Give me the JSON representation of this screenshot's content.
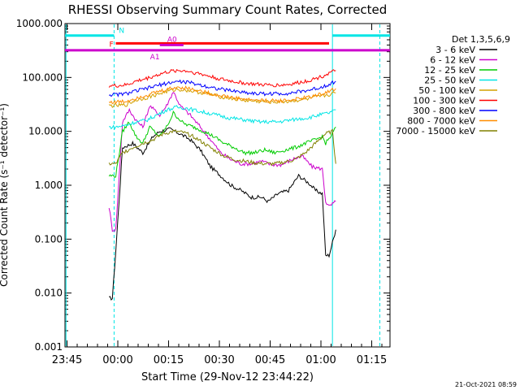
{
  "chart_data": {
    "type": "line",
    "title": "RHESSI Observing Summary Count Rates, Corrected",
    "xlabel": "Start Time (29-Nov-12 23:44:22)",
    "ylabel": "Corrected Count Rate (s⁻¹ detector⁻¹)",
    "x_unit": "minutes after 23:44:22",
    "xlim": [
      0,
      96
    ],
    "ylim": [
      0.001,
      1000
    ],
    "yscale": "log",
    "x_ticks": [
      {
        "t": 0.6,
        "label": "23:45"
      },
      {
        "t": 15.6,
        "label": "00:00"
      },
      {
        "t": 30.6,
        "label": "00:15"
      },
      {
        "t": 45.6,
        "label": "00:30"
      },
      {
        "t": 60.6,
        "label": "00:45"
      },
      {
        "t": 75.6,
        "label": "01:00"
      },
      {
        "t": 90.6,
        "label": "01:15"
      }
    ],
    "y_ticks": [
      {
        "v": 0.001,
        "label": "0.001"
      },
      {
        "v": 0.01,
        "label": "0.010"
      },
      {
        "v": 0.1,
        "label": "0.100"
      },
      {
        "v": 1,
        "label": "1.000"
      },
      {
        "v": 10,
        "label": "10.000"
      },
      {
        "v": 100,
        "label": "100.000"
      },
      {
        "v": 1000,
        "label": "1000.000"
      }
    ],
    "legend_title": "Det 1,3,5,6,9",
    "legend_position": "right",
    "series": [
      {
        "name": "3 - 6 keV",
        "color": "#000000",
        "x": [
          13,
          14,
          15,
          17,
          20,
          23,
          26,
          28,
          31,
          34,
          37,
          40,
          43,
          46,
          49,
          52,
          55,
          58,
          60,
          63,
          66,
          69,
          72,
          74,
          76,
          77,
          78,
          80
        ],
        "values": [
          0.008,
          0.008,
          0.06,
          5,
          6,
          4,
          8,
          10,
          11,
          9,
          7,
          4.5,
          2.2,
          1.5,
          1,
          0.8,
          0.6,
          0.6,
          0.5,
          0.7,
          0.8,
          1.5,
          1.1,
          0.8,
          0.7,
          0.05,
          0.05,
          0.15
        ]
      },
      {
        "name": "6 - 12 keV",
        "color": "#cc00cc",
        "x": [
          13,
          14,
          15,
          17,
          19,
          21,
          23,
          25,
          28,
          30,
          32,
          34,
          37,
          40,
          43,
          46,
          49,
          52,
          55,
          58,
          61,
          64,
          67,
          70,
          73,
          76,
          77,
          78,
          80
        ],
        "values": [
          0.4,
          0.15,
          0.15,
          15,
          25,
          16,
          12,
          30,
          20,
          30,
          55,
          30,
          20,
          12,
          7,
          4,
          3,
          2.5,
          2.5,
          2.8,
          2.4,
          2.4,
          3,
          3.5,
          2.2,
          2,
          0.5,
          0.4,
          0.5
        ]
      },
      {
        "name": "12 - 25 keV",
        "color": "#00cc00",
        "x": [
          13,
          14,
          15,
          17,
          19,
          21,
          23,
          25,
          28,
          30,
          32,
          35,
          38,
          41,
          44,
          47,
          50,
          53,
          56,
          59,
          62,
          65,
          68,
          71,
          74,
          76,
          77,
          79,
          80
        ],
        "values": [
          1.5,
          1.5,
          1.5,
          10,
          15,
          8,
          6,
          12,
          8,
          12,
          22,
          14,
          12,
          10,
          8,
          6,
          5,
          4,
          4,
          4.5,
          4,
          4.5,
          5,
          6,
          7,
          8,
          6,
          9,
          12
        ]
      },
      {
        "name": "25 - 50 keV",
        "color": "#00e5e5",
        "x": [
          13,
          15,
          18,
          21,
          24,
          27,
          30,
          33,
          36,
          39,
          42,
          45,
          48,
          51,
          54,
          57,
          60,
          63,
          66,
          69,
          72,
          75,
          78,
          80
        ],
        "values": [
          12,
          12,
          13,
          15,
          16,
          20,
          25,
          28,
          27,
          24,
          22,
          20,
          18,
          17,
          16,
          15,
          15,
          15,
          16,
          17,
          18,
          20,
          22,
          25
        ]
      },
      {
        "name": "50 - 100 keV",
        "color": "#d4a000",
        "x": [
          13,
          15,
          18,
          21,
          24,
          27,
          30,
          33,
          36,
          39,
          42,
          45,
          48,
          51,
          54,
          57,
          60,
          63,
          66,
          69,
          72,
          75,
          78,
          80
        ],
        "values": [
          30,
          30,
          31,
          38,
          42,
          48,
          55,
          60,
          58,
          54,
          50,
          45,
          42,
          39,
          37,
          36,
          35,
          35,
          36,
          38,
          40,
          44,
          48,
          52
        ]
      },
      {
        "name": "100 - 300 keV",
        "color": "#ff0000",
        "x": [
          13,
          15,
          18,
          21,
          24,
          27,
          30,
          33,
          36,
          39,
          42,
          45,
          48,
          51,
          54,
          57,
          60,
          63,
          66,
          69,
          72,
          75,
          78,
          80
        ],
        "values": [
          70,
          70,
          72,
          85,
          95,
          110,
          125,
          135,
          132,
          120,
          108,
          96,
          88,
          82,
          77,
          74,
          72,
          72,
          74,
          80,
          88,
          100,
          120,
          135
        ]
      },
      {
        "name": "300 - 800 keV",
        "color": "#0000ff",
        "x": [
          13,
          15,
          18,
          21,
          24,
          27,
          30,
          33,
          36,
          39,
          42,
          45,
          48,
          51,
          54,
          57,
          60,
          63,
          66,
          69,
          72,
          75,
          78,
          80
        ],
        "values": [
          48,
          48,
          50,
          56,
          62,
          70,
          78,
          84,
          82,
          75,
          68,
          62,
          58,
          55,
          52,
          50,
          50,
          50,
          51,
          54,
          58,
          64,
          75,
          85
        ]
      },
      {
        "name": "800 - 7000 keV",
        "color": "#ff8c00",
        "x": [
          13,
          15,
          18,
          21,
          24,
          27,
          30,
          33,
          36,
          39,
          42,
          45,
          48,
          51,
          54,
          57,
          60,
          63,
          66,
          69,
          72,
          75,
          78,
          80
        ],
        "values": [
          35,
          35,
          36,
          42,
          47,
          53,
          60,
          66,
          64,
          58,
          52,
          47,
          44,
          41,
          39,
          38,
          37,
          37,
          38,
          40,
          43,
          48,
          55,
          62
        ]
      },
      {
        "name": "7000 - 15000 keV",
        "color": "#808000",
        "x": [
          13,
          14,
          15,
          17,
          20,
          23,
          26,
          29,
          32,
          35,
          38,
          41,
          44,
          47,
          50,
          53,
          56,
          59,
          62,
          65,
          68,
          71,
          74,
          76,
          77,
          79,
          80
        ],
        "values": [
          2.5,
          2.5,
          2.5,
          4,
          5,
          6,
          7,
          9,
          10,
          9.5,
          8,
          6,
          4.5,
          3.5,
          3,
          2.8,
          2.6,
          2.5,
          2.5,
          2.7,
          3,
          4,
          6,
          8,
          9,
          10,
          2.5
        ]
      }
    ],
    "annotations": [
      {
        "label": "N",
        "color": "#00e5e5",
        "x_ranges": [
          [
            0,
            14.5
          ],
          [
            79,
            96
          ]
        ],
        "level": 600
      },
      {
        "label": "F",
        "color": "#ff0000",
        "x_ranges": [
          [
            15,
            78
          ]
        ],
        "level": 430
      },
      {
        "label": "A0",
        "color": "#cc00cc",
        "x_ranges": [
          [
            28,
            35
          ]
        ],
        "level": 400
      },
      {
        "label": "A1",
        "color": "#cc00cc",
        "x_ranges": [
          [
            0,
            96
          ]
        ],
        "level": 320
      }
    ],
    "vertical_markers": {
      "solid": [
        0.3,
        79
      ],
      "dashed": [
        14.5,
        93
      ]
    }
  },
  "footer": {
    "date": "21-Oct-2021 08:59"
  }
}
